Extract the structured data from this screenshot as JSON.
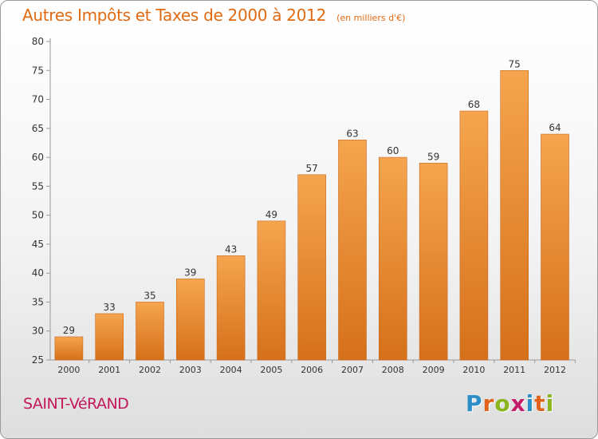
{
  "title": "Autres Impôts et Taxes de 2000 à 2012",
  "unit": "(en milliers d'€)",
  "commune": "SAINT-VéRAND",
  "logo": {
    "text": "Proxiti",
    "letters": [
      "P",
      "r",
      "o",
      "x",
      "i",
      "t",
      "i"
    ],
    "colors": [
      "#2a8fc9",
      "#e0631a",
      "#8ab51f",
      "#c41d6a",
      "#2a8fc9",
      "#e0631a",
      "#8ab51f"
    ]
  },
  "colors": {
    "bar_top": "#f5a54e",
    "bar_bottom": "#d6701a",
    "title": "#e06a12",
    "commune": "#c3185a",
    "label": "#333333"
  },
  "chart_data": {
    "type": "bar",
    "title": "Autres Impôts et Taxes de 2000 à 2012",
    "subtitle": "(en milliers d'€)",
    "categories": [
      "2000",
      "2001",
      "2002",
      "2003",
      "2004",
      "2005",
      "2006",
      "2007",
      "2008",
      "2009",
      "2010",
      "2011",
      "2012"
    ],
    "values": [
      29,
      33,
      35,
      39,
      43,
      49,
      57,
      63,
      60,
      59,
      68,
      75,
      64
    ],
    "ylim": [
      25,
      80
    ],
    "yticks": [
      25,
      30,
      35,
      40,
      45,
      50,
      55,
      60,
      65,
      70,
      75,
      80
    ],
    "grid": false,
    "data_labels": true
  }
}
